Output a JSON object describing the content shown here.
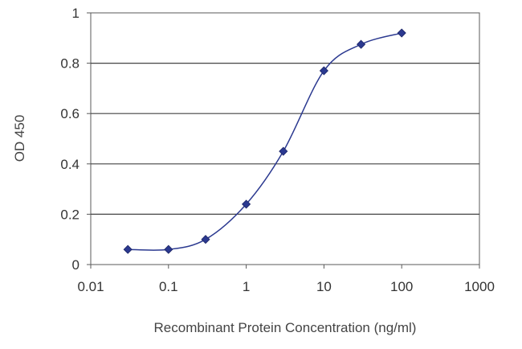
{
  "chart_data": {
    "type": "line",
    "xlabel": "Recombinant Protein Concentration (ng/ml)",
    "ylabel": "OD 450",
    "xscale": "log",
    "xlim": [
      0.01,
      1000
    ],
    "ylim": [
      0,
      1
    ],
    "grid": "horizontal",
    "x_tick_labels": [
      "0.01",
      "0.1",
      "1",
      "10",
      "100",
      "1000"
    ],
    "y_tick_labels": [
      "0",
      "0.2",
      "0.4",
      "0.6",
      "0.8",
      "1"
    ],
    "series": [
      {
        "x": [
          0.03,
          0.1,
          0.3,
          1,
          3,
          10,
          30,
          100
        ],
        "y": [
          0.06,
          0.06,
          0.1,
          0.24,
          0.45,
          0.77,
          0.875,
          0.92
        ],
        "color": "#2b3990",
        "marker": "diamond"
      }
    ]
  }
}
